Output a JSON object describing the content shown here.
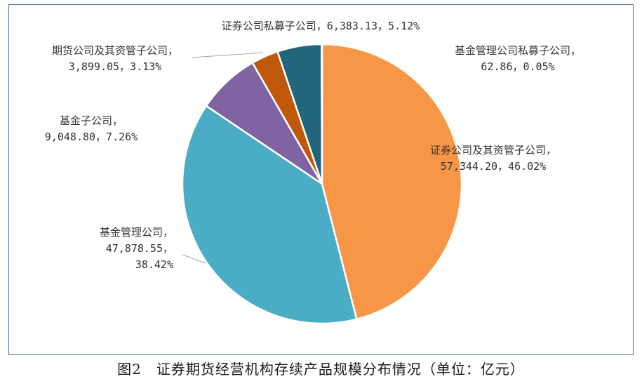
{
  "chart_data": {
    "type": "pie",
    "caption": "图2　证券期货经营机构存续产品规模分布情况（单位：亿元）",
    "slices": [
      {
        "name": "证券公司及其资管子公司",
        "value": "57,344.20",
        "pct": "46.02%",
        "num": 57344.2,
        "color": "#f79646"
      },
      {
        "name": "基金管理公司",
        "value": "47,878.55",
        "pct": "38.42%",
        "num": 47878.55,
        "color": "#4bacc6"
      },
      {
        "name": "基金子公司",
        "value": "9,048.80",
        "pct": "7.26%",
        "num": 9048.8,
        "color": "#8064a2"
      },
      {
        "name": "期货公司及其资管子公司",
        "value": "3,899.05",
        "pct": "3.13%",
        "num": 3899.05,
        "color": "#c0580c"
      },
      {
        "name": "证券公司私募子公司",
        "value": "6,383.13",
        "pct": "5.12%",
        "num": 6383.13,
        "color": "#23657a"
      },
      {
        "name": "基金管理公司私募子公司",
        "value": "62.86",
        "pct": "0.05%",
        "num": 62.86,
        "color": "#9bbb59"
      }
    ]
  }
}
